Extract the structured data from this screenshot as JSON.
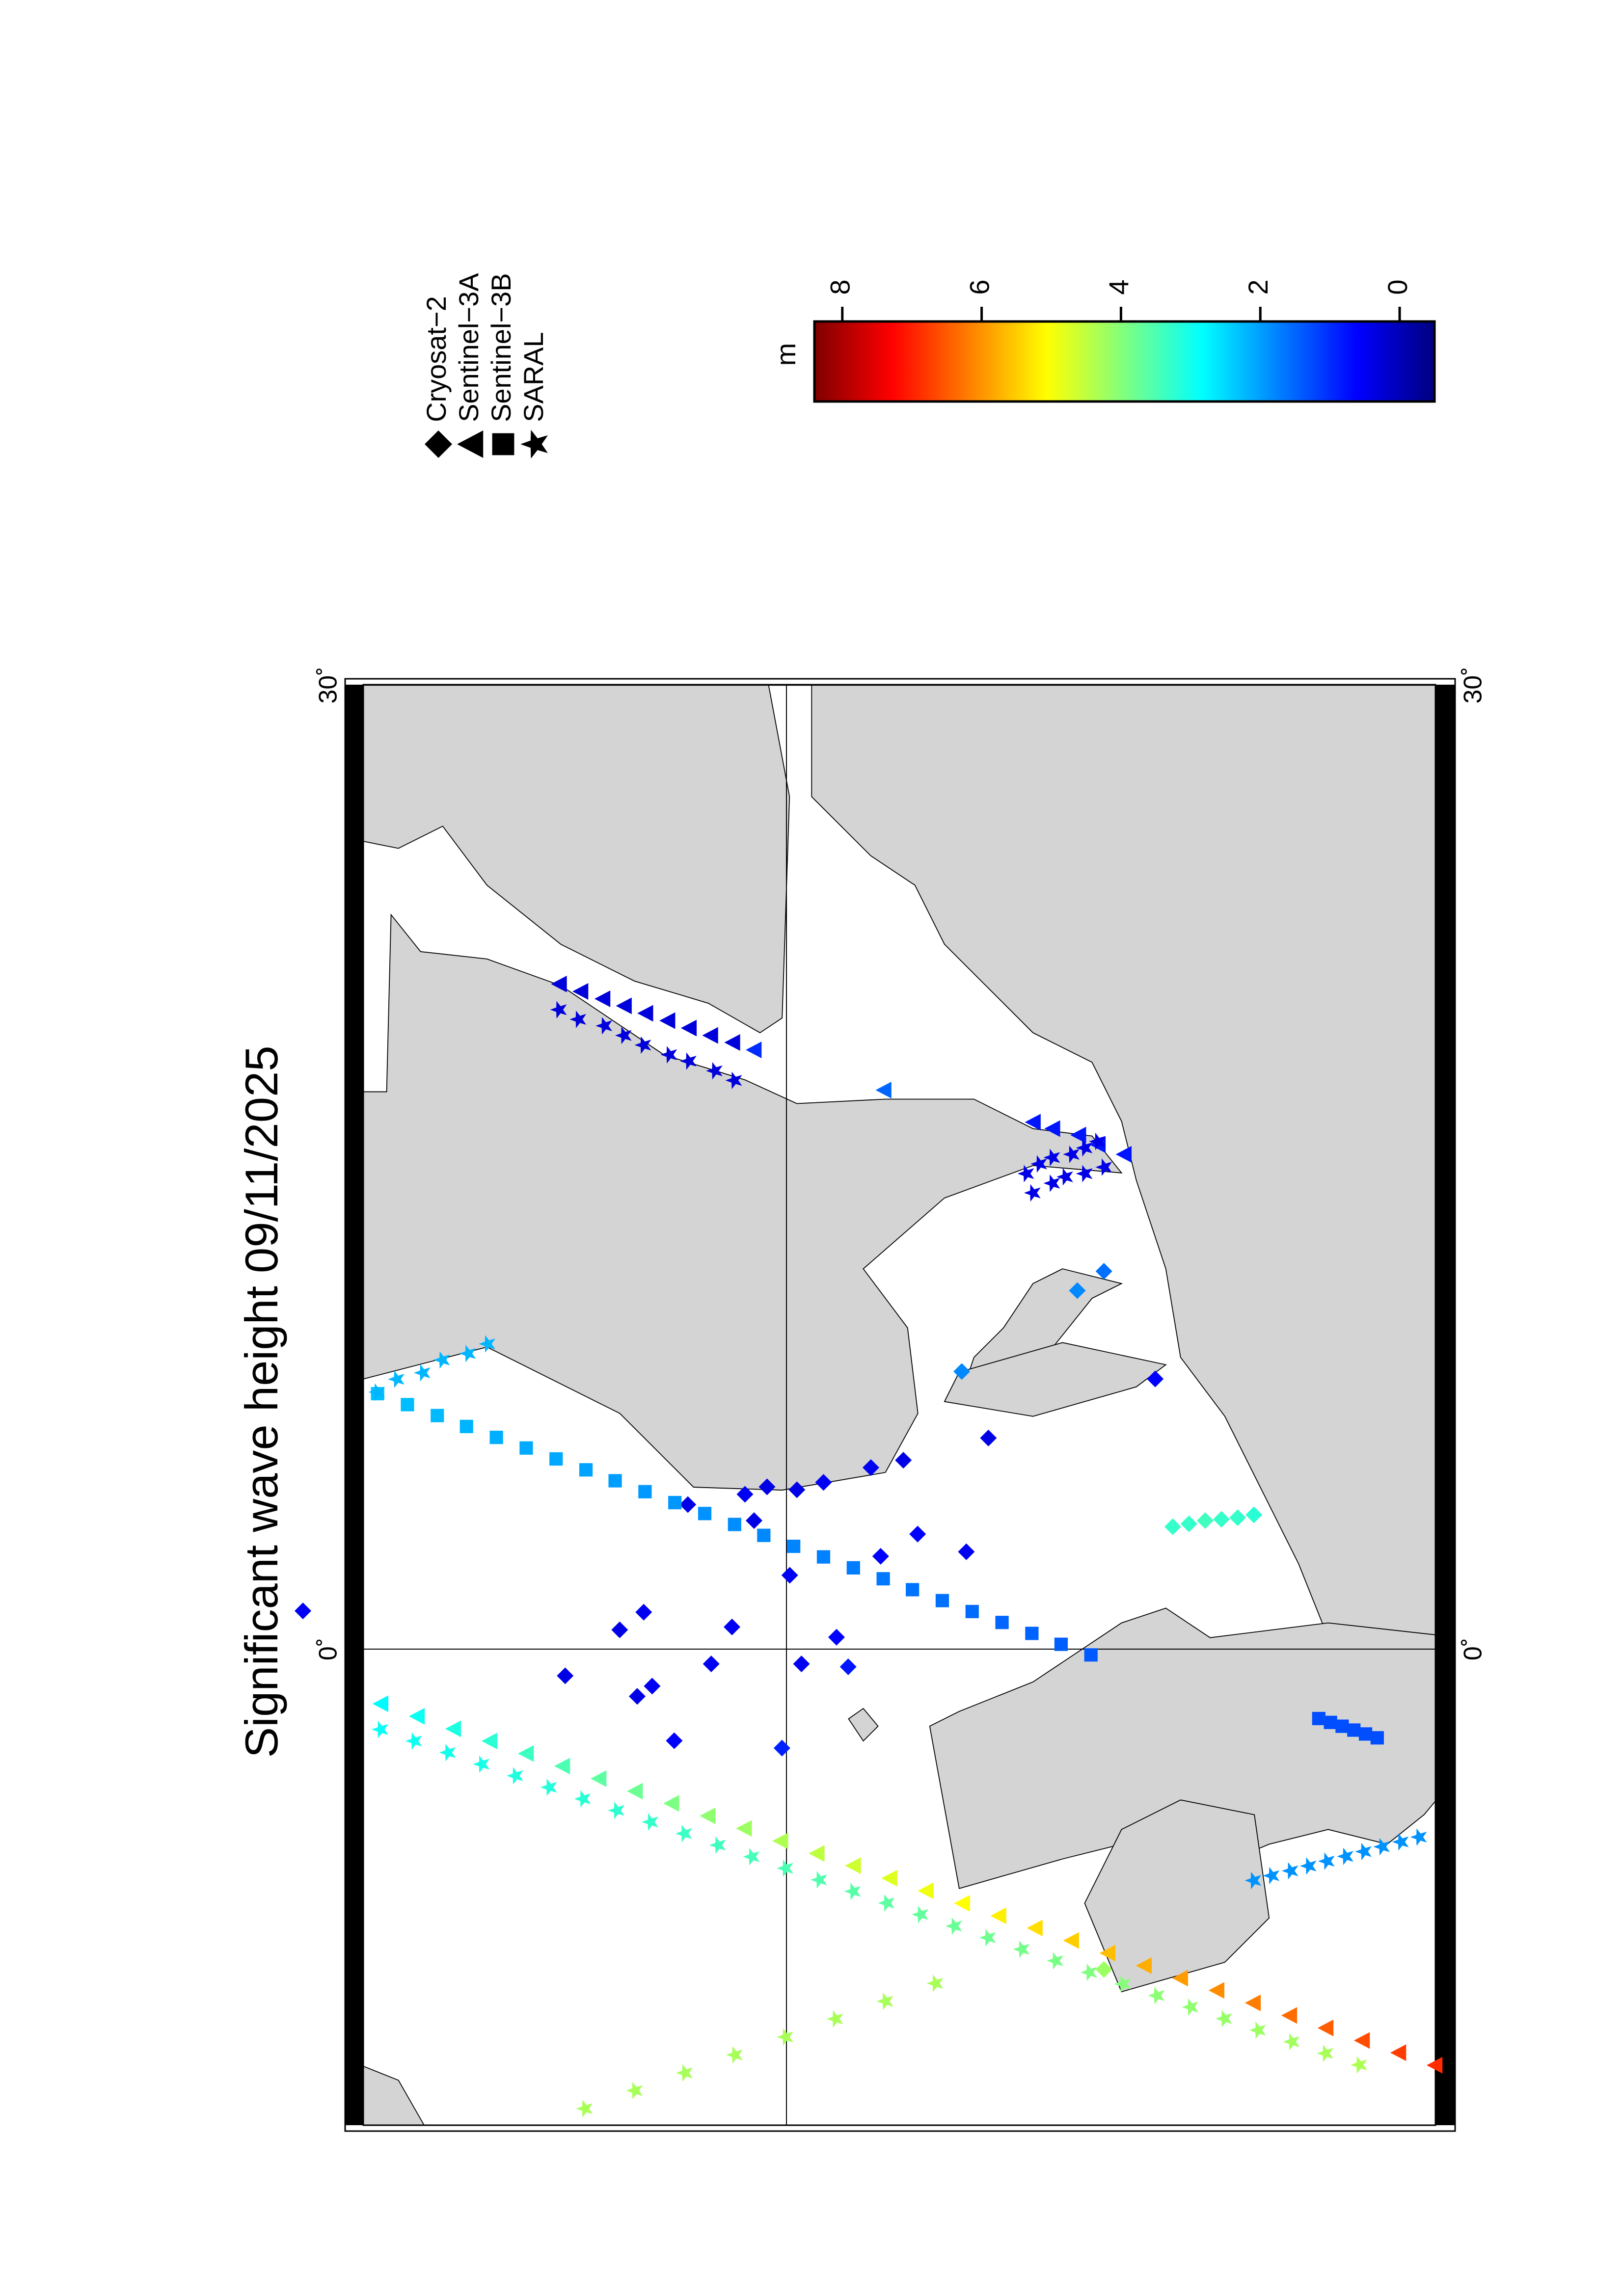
{
  "chart_data": {
    "type": "map",
    "title": "Significant wave height 09/11/2025",
    "xlim": [
      -15,
      30.2
    ],
    "ylim": [
      49.7,
      66.8
    ],
    "xticks": [
      {
        "value": 0,
        "label": "0˚"
      },
      {
        "value": 30,
        "label": "30˚"
      }
    ],
    "colorbar": {
      "label": "m",
      "lim": [
        -0.5,
        8.4
      ],
      "ticks": [
        0,
        2,
        4,
        6,
        8
      ],
      "colormap": [
        "#00007f",
        "#0000ff",
        "#007fff",
        "#00ffff",
        "#7fff7f",
        "#ffff00",
        "#ff7f00",
        "#ff0000",
        "#7f0000"
      ]
    },
    "series": [
      {
        "name": "Cryosat−2",
        "marker": "diamond",
        "lon": [
          1.19,
          -0.83,
          0.6,
          1.15,
          -1.47,
          -1.15,
          -2.85,
          4.5,
          -0.46,
          0.69,
          4.82,
          4.0,
          5.05,
          -3.08,
          2.3,
          4.96,
          -0.46,
          5.19,
          0.37,
          -0.55,
          5.65,
          2.89,
          5.88,
          3.58,
          3.03,
          6.57,
          8.64,
          11.16,
          11.76,
          8.41,
          -9.97,
          3.81,
          3.9,
          4.0,
          4.04,
          4.09,
          4.18
        ],
        "lat": [
          67.45,
          63.41,
          62.57,
          62.2,
          62.3,
          62.07,
          61.73,
          61.52,
          61.16,
          60.84,
          60.64,
          60.5,
          60.3,
          60.07,
          59.95,
          59.84,
          59.77,
          59.43,
          59.23,
          59.05,
          58.7,
          58.55,
          58.2,
          57.98,
          57.23,
          56.89,
          57.3,
          55.52,
          55.11,
          54.32,
          55.11,
          54.05,
          53.8,
          53.55,
          53.3,
          53.05,
          52.8
        ],
        "hs": [
          0.5,
          0.4,
          0.4,
          0.5,
          0.4,
          0.5,
          0.6,
          0.4,
          0.5,
          0.5,
          0.5,
          0.4,
          0.4,
          0.9,
          0.5,
          0.4,
          0.5,
          0.5,
          0.6,
          0.8,
          0.5,
          0.6,
          0.4,
          0.6,
          0.5,
          0.4,
          1.8,
          1.8,
          1.6,
          0.6,
          4.2,
          3.3,
          3.3,
          3.4,
          3.3,
          3.3,
          3.2
        ]
      },
      {
        "name": "Sentinel−3A",
        "marker": "triangle",
        "lon": [
          20.7,
          20.47,
          20.24,
          20.02,
          19.79,
          19.56,
          19.33,
          19.1,
          18.88,
          18.65,
          17.4,
          16.4,
          16.2,
          16.0,
          15.7,
          15.4,
          -1.7,
          -2.09,
          -2.48,
          -2.86,
          -3.25,
          -3.64,
          -4.03,
          -4.42,
          -4.8,
          -5.19,
          -5.58,
          -5.97,
          -6.36,
          -6.74,
          -7.13,
          -7.52,
          -7.91,
          -8.3,
          -8.68,
          -9.07,
          -9.46,
          -9.85,
          -10.24,
          -10.62,
          -11.01,
          -11.4,
          -11.79,
          -12.18,
          -12.56,
          -12.95
        ],
        "lat": [
          63.5,
          63.17,
          62.83,
          62.5,
          62.17,
          61.83,
          61.5,
          61.17,
          60.83,
          60.5,
          58.5,
          56.2,
          55.9,
          55.5,
          55.2,
          54.8,
          66.25,
          65.69,
          65.13,
          64.57,
          64.01,
          63.45,
          62.89,
          62.33,
          61.77,
          61.21,
          60.65,
          60.09,
          59.53,
          58.97,
          58.41,
          57.85,
          57.29,
          56.73,
          56.17,
          55.61,
          55.05,
          54.49,
          53.93,
          53.37,
          52.81,
          52.25,
          51.69,
          51.13,
          50.57,
          50.01
        ],
        "hs": [
          0.3,
          0.3,
          0.3,
          0.3,
          0.3,
          0.3,
          0.3,
          0.3,
          0.3,
          1.0,
          1.5,
          0.8,
          0.8,
          0.8,
          0.8,
          0.8,
          2.8,
          2.94,
          3.08,
          3.22,
          3.37,
          3.51,
          3.65,
          3.79,
          3.93,
          4.07,
          4.21,
          4.36,
          4.5,
          4.64,
          4.78,
          4.92,
          5.06,
          5.2,
          5.35,
          5.49,
          5.63,
          5.77,
          5.91,
          6.05,
          6.19,
          6.34,
          6.48,
          6.62,
          6.76,
          6.9
        ]
      },
      {
        "name": "Sentinel−3B",
        "marker": "square",
        "lon": [
          7.95,
          7.61,
          7.27,
          6.93,
          6.59,
          6.26,
          5.92,
          5.58,
          5.24,
          4.9,
          4.56,
          4.22,
          3.88,
          3.54,
          3.2,
          2.87,
          2.53,
          2.19,
          1.85,
          1.51,
          1.17,
          0.83,
          0.49,
          0.15,
          -0.18,
          -2.16,
          -2.28,
          -2.4,
          -2.52,
          -2.64,
          -2.76
        ],
        "lat": [
          66.3,
          65.84,
          65.38,
          64.93,
          64.47,
          64.01,
          63.55,
          63.09,
          62.64,
          62.18,
          61.72,
          61.26,
          60.8,
          60.35,
          59.89,
          59.43,
          58.97,
          58.51,
          58.06,
          57.6,
          57.14,
          56.68,
          56.22,
          55.77,
          55.31,
          51.8,
          51.62,
          51.44,
          51.26,
          51.08,
          50.9
        ],
        "hs": [
          2.3,
          2.26,
          2.23,
          2.19,
          2.15,
          2.11,
          2.08,
          2.04,
          2.0,
          1.96,
          1.93,
          1.89,
          1.85,
          1.81,
          1.78,
          1.74,
          1.7,
          1.66,
          1.63,
          1.59,
          1.55,
          1.51,
          1.48,
          1.44,
          1.4,
          1.3,
          1.3,
          1.3,
          1.3,
          1.3,
          1.3
        ]
      },
      {
        "name": "SARAL",
        "marker": "star",
        "lon": [
          8.0,
          8.4,
          8.6,
          9.0,
          9.2,
          9.5,
          19.9,
          19.6,
          19.4,
          19.1,
          18.8,
          18.5,
          18.3,
          18.0,
          17.7,
          14.8,
          15.1,
          15.3,
          15.4,
          15.6,
          15.8,
          14.2,
          14.5,
          14.7,
          14.8,
          15.0,
          -2.5,
          -2.86,
          -3.22,
          -3.58,
          -3.94,
          -4.3,
          -4.66,
          -5.02,
          -5.38,
          -5.74,
          -6.1,
          -6.46,
          -6.82,
          -7.18,
          -7.54,
          -7.9,
          -8.26,
          -8.62,
          -8.98,
          -9.34,
          -9.7,
          -10.06,
          -10.42,
          -10.78,
          -11.14,
          -11.5,
          -11.86,
          -12.22,
          -12.58,
          -12.94,
          -14.3,
          -13.74,
          -13.19,
          -12.63,
          -12.07,
          -11.51,
          -10.96,
          -10.4,
          -7.2,
          -7.05,
          -6.9,
          -6.75,
          -6.6,
          -6.45,
          -6.3,
          -6.15,
          -6.0,
          -5.85
        ],
        "lat": [
          66.3,
          66.0,
          65.6,
          65.3,
          64.9,
          64.6,
          63.5,
          63.2,
          62.8,
          62.5,
          62.2,
          61.8,
          61.5,
          61.1,
          60.8,
          56.3,
          56.1,
          55.9,
          55.6,
          55.4,
          55.2,
          56.2,
          55.9,
          55.7,
          55.4,
          55.1,
          66.25,
          65.73,
          65.21,
          64.69,
          64.17,
          63.65,
          63.13,
          62.61,
          62.09,
          61.57,
          61.05,
          60.53,
          60.01,
          59.49,
          58.97,
          58.45,
          57.93,
          57.41,
          56.89,
          56.37,
          55.85,
          55.33,
          54.81,
          54.29,
          53.77,
          53.25,
          52.73,
          52.21,
          51.69,
          51.17,
          63.1,
          62.33,
          61.56,
          60.79,
          60.01,
          59.24,
          58.47,
          57.7,
          52.8,
          52.52,
          52.23,
          51.95,
          51.67,
          51.38,
          51.1,
          50.82,
          50.53,
          50.25
        ],
        "hs": [
          2.2,
          2.2,
          2.2,
          2.2,
          2.2,
          2.2,
          0.3,
          0.3,
          0.3,
          0.3,
          0.3,
          0.3,
          0.3,
          0.3,
          0.3,
          0.4,
          0.4,
          0.4,
          0.4,
          0.4,
          0.4,
          0.4,
          0.4,
          0.4,
          0.4,
          0.4,
          2.9,
          2.95,
          3.0,
          3.05,
          3.1,
          3.15,
          3.2,
          3.25,
          3.3,
          3.35,
          3.4,
          3.45,
          3.5,
          3.55,
          3.6,
          3.65,
          3.7,
          3.75,
          3.8,
          3.85,
          3.9,
          3.95,
          4.0,
          4.05,
          4.1,
          4.15,
          4.2,
          4.25,
          4.3,
          4.35,
          4.3,
          4.3,
          4.3,
          4.3,
          4.3,
          4.3,
          4.3,
          4.3,
          1.9,
          1.9,
          1.9,
          1.9,
          1.9,
          1.9,
          1.9,
          1.9,
          1.9,
          1.9
        ]
      }
    ]
  }
}
